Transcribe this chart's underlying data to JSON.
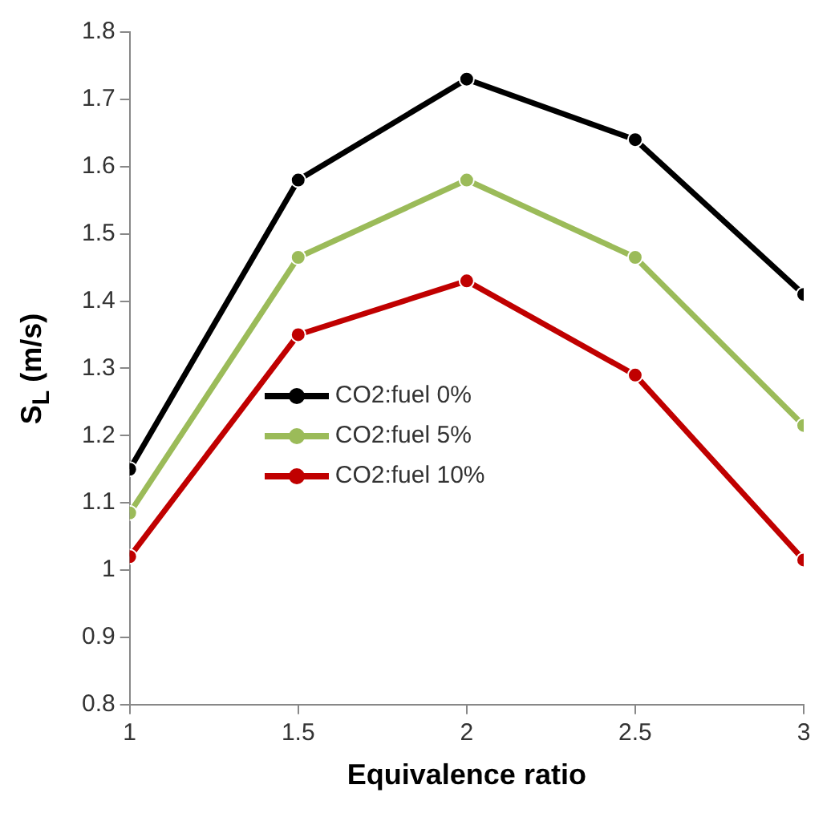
{
  "chart_data": {
    "type": "line",
    "xlabel": "Equivalence ratio",
    "ylabel": "S$_{L}$ (m/s)",
    "x": [
      1,
      1.5,
      2,
      2.5,
      3
    ],
    "series": [
      {
        "name": "CO2:fuel 0%",
        "color": "#000000",
        "values": [
          1.15,
          1.58,
          1.73,
          1.64,
          1.41
        ]
      },
      {
        "name": "CO2:fuel 5%",
        "color": "#9bbb59",
        "values": [
          1.085,
          1.465,
          1.58,
          1.465,
          1.215
        ]
      },
      {
        "name": "CO2:fuel 10%",
        "color": "#c00000",
        "values": [
          1.02,
          1.35,
          1.43,
          1.29,
          1.015
        ]
      }
    ],
    "xlim": [
      1,
      3
    ],
    "xticks": [
      1,
      1.5,
      2,
      2.5,
      3
    ],
    "ylim": [
      0.8,
      1.8
    ],
    "yticks": [
      0.8,
      0.9,
      1,
      1.1,
      1.2,
      1.3,
      1.4,
      1.5,
      1.6,
      1.7,
      1.8
    ],
    "grid": false,
    "legend": "left",
    "marker": "circle",
    "line_style": "solid"
  }
}
